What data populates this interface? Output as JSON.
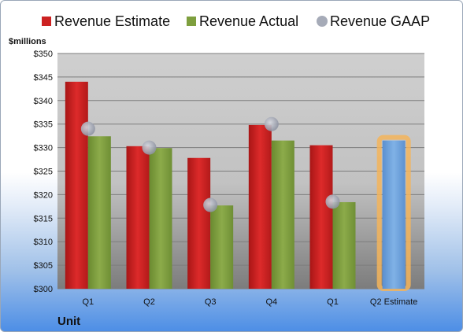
{
  "chart_data": {
    "type": "bar",
    "categories": [
      "Q1",
      "Q2",
      "Q3",
      "Q4",
      "Q1",
      "Q2 Estimate"
    ],
    "series": [
      {
        "name": "Revenue Estimate",
        "type": "bar",
        "color": "#cc2222",
        "values": [
          344,
          330.3,
          327.8,
          334.8,
          330.5,
          null
        ]
      },
      {
        "name": "Revenue Actual",
        "type": "bar",
        "color": "#7e9f3e",
        "values": [
          332.4,
          329.9,
          317.7,
          331.5,
          318.4,
          331.5
        ]
      },
      {
        "name": "Revenue GAAP",
        "type": "scatter",
        "color": "#a6abb8",
        "values": [
          334,
          330,
          317.8,
          335,
          318.5,
          null
        ]
      }
    ],
    "estimate_bar_color": "#6fa3db",
    "highlight_color": "#f3b45a",
    "ylabel": "$millions",
    "xlabel": "Unit",
    "ylim": [
      300,
      350
    ],
    "yticks": [
      "$300",
      "$305",
      "$310",
      "$315",
      "$320",
      "$325",
      "$330",
      "$335",
      "$340",
      "$345",
      "$350"
    ],
    "grid": true,
    "legend_position": "top"
  }
}
